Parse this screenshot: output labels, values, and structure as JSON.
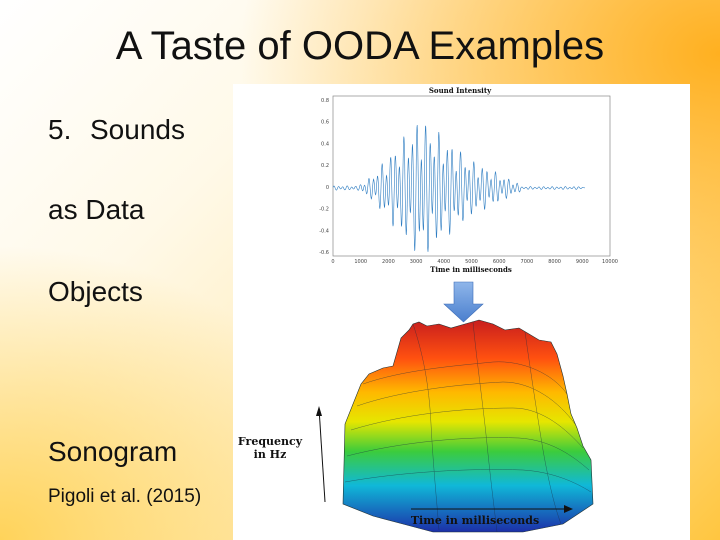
{
  "slide": {
    "title": "A Taste of OODA Examples",
    "bullets": [
      {
        "number": "5.",
        "text": "Sounds"
      },
      {
        "text": "as Data"
      },
      {
        "text": "Objects"
      },
      {
        "text": "Sonogram"
      }
    ],
    "citation": "Pigoli et al. (2015)"
  },
  "figure": {
    "waveform": {
      "title": "Sound Intensity",
      "xlabel": "Time in milliseconds",
      "yticks": [
        "0.8",
        "0.6",
        "0.4",
        "0.2",
        "0",
        "-0.2",
        "-0.4",
        "-0.6"
      ],
      "xticks": [
        "0",
        "1000",
        "2000",
        "3000",
        "4000",
        "5000",
        "6000",
        "7000",
        "8000",
        "9000",
        "10000"
      ],
      "color": "#2e7dc2"
    },
    "arrow_color": "#5b8fd6",
    "sonogram": {
      "ylabel_line1": "Frequency",
      "ylabel_line2": "in Hz",
      "xlabel": "Time in milliseconds"
    }
  }
}
